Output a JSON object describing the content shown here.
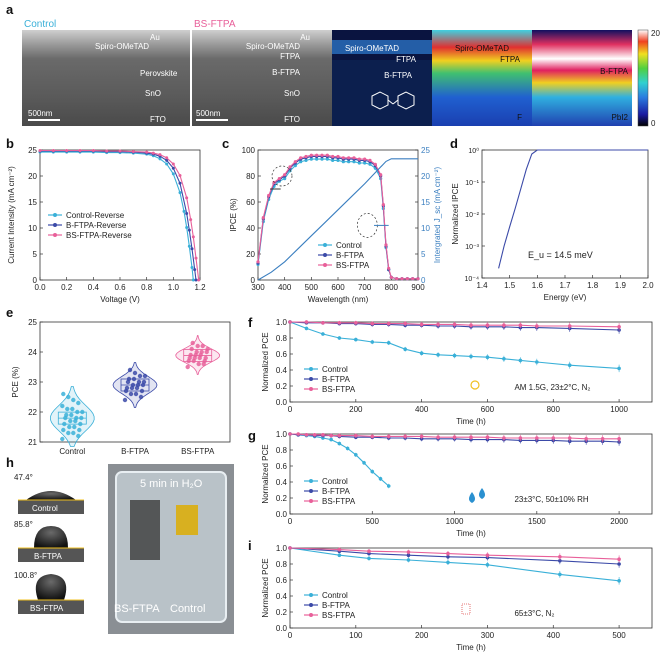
{
  "panel_labels": {
    "a": "a",
    "b": "b",
    "c": "c",
    "d": "d",
    "e": "e",
    "f": "f",
    "g": "g",
    "h": "h",
    "i": "i"
  },
  "panel_a": {
    "control_label": "Control",
    "bsftpa_label": "BS-FTPA",
    "control_layers": [
      "Au",
      "Spiro-OMeTAD",
      "Perovskite",
      "SnO",
      "FTO"
    ],
    "bsftpa_layers": [
      "Au",
      "Spiro-OMeTAD",
      "FTPA",
      "B-FTPA",
      "SnO",
      "FTO"
    ],
    "scale_bar": "500nm",
    "map1_labels": [
      "Spiro-OMeTAD",
      "FTPA",
      "B-FTPA"
    ],
    "map2_labels": [
      "Spiro-OMeTAD",
      "FTPA",
      "F"
    ],
    "map3_labels": [
      "B-FTPA",
      "PbI2"
    ],
    "colorbar_max": "20",
    "colorbar_min": "0",
    "colors": {
      "control": "#3ab0d8",
      "bsftpa": "#e8609a"
    }
  },
  "panel_h": {
    "angles": [
      "47.4°",
      "85.8°",
      "100.8°"
    ],
    "labels": [
      "Control",
      "B-FTPA",
      "BS-FTPA"
    ],
    "photo_text": "5 min in H₂O",
    "photo_labels": [
      "BS-FTPA",
      "Control"
    ]
  },
  "chart_data": [
    {
      "id": "b",
      "type": "line",
      "xlabel": "Voltage (V)",
      "ylabel": "Current Intensity (mA cm⁻²)",
      "xlim": [
        0,
        1.2
      ],
      "ylim": [
        0,
        25
      ],
      "xticks": [
        0.0,
        0.2,
        0.4,
        0.6,
        0.8,
        1.0,
        1.2
      ],
      "yticks": [
        0,
        5,
        10,
        15,
        20,
        25
      ],
      "legend": "bottom-left",
      "series": [
        {
          "name": "Control-Reverse",
          "color": "#3ab0d8",
          "x": [
            0,
            0.1,
            0.2,
            0.3,
            0.4,
            0.5,
            0.6,
            0.7,
            0.8,
            0.85,
            0.9,
            0.95,
            1.0,
            1.05,
            1.08,
            1.1,
            1.12,
            1.14,
            1.15
          ],
          "y": [
            24.6,
            24.6,
            24.6,
            24.6,
            24.6,
            24.5,
            24.5,
            24.4,
            24.2,
            23.9,
            23.3,
            22.3,
            20.4,
            16.8,
            13.2,
            10.1,
            6.5,
            2.4,
            0
          ]
        },
        {
          "name": "B-FTPA-Reverse",
          "color": "#3b4aa8",
          "x": [
            0,
            0.1,
            0.2,
            0.3,
            0.4,
            0.5,
            0.6,
            0.7,
            0.8,
            0.85,
            0.9,
            0.95,
            1.0,
            1.05,
            1.1,
            1.12,
            1.14,
            1.16,
            1.17
          ],
          "y": [
            24.8,
            24.8,
            24.8,
            24.8,
            24.8,
            24.7,
            24.7,
            24.6,
            24.4,
            24.2,
            23.8,
            23.0,
            21.5,
            18.6,
            12.8,
            9.6,
            6.0,
            2.0,
            0
          ]
        },
        {
          "name": "BS-FTPA-Reverse",
          "color": "#e8609a",
          "x": [
            0,
            0.1,
            0.2,
            0.3,
            0.4,
            0.5,
            0.6,
            0.7,
            0.8,
            0.85,
            0.9,
            0.95,
            1.0,
            1.05,
            1.1,
            1.13,
            1.15,
            1.17,
            1.19
          ],
          "y": [
            24.9,
            24.9,
            24.9,
            24.9,
            24.9,
            24.8,
            24.8,
            24.7,
            24.6,
            24.4,
            24.1,
            23.5,
            22.3,
            20.1,
            15.8,
            11.6,
            8.3,
            4.2,
            0
          ]
        }
      ]
    },
    {
      "id": "c",
      "type": "line",
      "xlabel": "Wavelength (nm)",
      "ylabel": "IPCE (%)",
      "y2label": "Intergrated J_sc (mA cm⁻²)",
      "xlim": [
        300,
        900
      ],
      "ylim": [
        0,
        100
      ],
      "y2lim": [
        0,
        25
      ],
      "xticks": [
        300,
        400,
        500,
        600,
        700,
        800,
        900
      ],
      "yticks": [
        0,
        20,
        40,
        60,
        80,
        100
      ],
      "y2ticks": [
        0,
        5,
        10,
        15,
        20,
        25
      ],
      "legend": "bottom-right",
      "series": [
        {
          "name": "Control",
          "color": "#3ab0d8",
          "x": [
            300,
            320,
            340,
            360,
            380,
            400,
            420,
            440,
            460,
            480,
            500,
            520,
            540,
            560,
            580,
            600,
            620,
            640,
            660,
            680,
            700,
            720,
            740,
            760,
            770,
            780,
            790,
            800,
            820,
            840,
            860,
            880,
            900
          ],
          "y": [
            12,
            45,
            62,
            72,
            76,
            78,
            84,
            88,
            91,
            92,
            93,
            93,
            93,
            93,
            92,
            92,
            91,
            91,
            91,
            90,
            90,
            89,
            86,
            78,
            55,
            25,
            8,
            2,
            1,
            1,
            1,
            1,
            1
          ]
        },
        {
          "name": "B-FTPA",
          "color": "#3b4aa8",
          "x": [
            300,
            320,
            340,
            360,
            380,
            400,
            420,
            440,
            460,
            480,
            500,
            520,
            540,
            560,
            580,
            600,
            620,
            640,
            660,
            680,
            700,
            720,
            740,
            760,
            770,
            780,
            790,
            800,
            820,
            840,
            860,
            880,
            900
          ],
          "y": [
            13,
            47,
            64,
            74,
            77,
            80,
            86,
            90,
            93,
            94,
            95,
            95,
            95,
            95,
            94,
            94,
            93,
            93,
            93,
            92,
            92,
            91,
            88,
            80,
            57,
            26,
            8,
            2,
            1,
            1,
            1,
            1,
            1
          ]
        },
        {
          "name": "BS-FTPA",
          "color": "#e8609a",
          "x": [
            300,
            320,
            340,
            360,
            380,
            400,
            420,
            440,
            460,
            480,
            500,
            520,
            540,
            560,
            580,
            600,
            620,
            640,
            660,
            680,
            700,
            720,
            740,
            760,
            770,
            780,
            790,
            800,
            820,
            840,
            860,
            880,
            900
          ],
          "y": [
            14,
            48,
            65,
            75,
            78,
            81,
            87,
            91,
            94,
            95,
            96,
            96,
            96,
            96,
            95,
            95,
            94,
            94,
            94,
            93,
            93,
            92,
            89,
            81,
            58,
            27,
            9,
            2,
            1,
            1,
            1,
            1,
            1
          ]
        },
        {
          "name": "",
          "axis": "y2",
          "color": "#3b7fc0",
          "x": [
            300,
            350,
            400,
            450,
            500,
            550,
            600,
            650,
            700,
            750,
            780,
            800,
            900
          ],
          "y": [
            0,
            1.5,
            3.5,
            6,
            8.5,
            11,
            13.5,
            16,
            18.5,
            21.2,
            22.8,
            23.3,
            23.3
          ]
        }
      ]
    },
    {
      "id": "d",
      "type": "line",
      "xlabel": "Energy (eV)",
      "ylabel": "Normalized IPCE",
      "scale": "log",
      "xlim": [
        1.4,
        2.0
      ],
      "ylim": [
        0.0001,
        1
      ],
      "xticks": [
        1.4,
        1.5,
        1.6,
        1.7,
        1.8,
        1.9,
        2.0
      ],
      "ytick_labels": [
        "10⁰",
        "10⁻¹",
        "10⁻²",
        "10⁻³",
        "10⁻⁴"
      ],
      "annotation": "E_u = 14.5 meV",
      "series": [
        {
          "name": "",
          "color": "#3b4aa8",
          "x": [
            1.46,
            1.48,
            1.5,
            1.52,
            1.54,
            1.56,
            1.58,
            1.6,
            1.7,
            1.8,
            1.9,
            2.0
          ],
          "y": [
            0.0002,
            0.001,
            0.004,
            0.015,
            0.06,
            0.25,
            0.75,
            1,
            1,
            1,
            1,
            1
          ]
        }
      ]
    },
    {
      "id": "e",
      "type": "scatter",
      "ylabel": "PCE (%)",
      "categories": [
        "Control",
        "B-FTPA",
        "BS-FTPA"
      ],
      "ylim": [
        21,
        25
      ],
      "yticks": [
        21,
        22,
        23,
        24,
        25
      ],
      "series": [
        {
          "name": "Control",
          "color": "#3ab0d8",
          "values": [
            21.1,
            21.2,
            21.3,
            21.3,
            21.4,
            21.4,
            21.5,
            21.5,
            21.6,
            21.6,
            21.7,
            21.7,
            21.8,
            21.8,
            21.8,
            21.9,
            21.9,
            22.0,
            22.0,
            22.1,
            22.1,
            22.2,
            22.3,
            22.4,
            22.5,
            22.6
          ]
        },
        {
          "name": "B-FTPA",
          "color": "#3b4aa8",
          "values": [
            22.4,
            22.5,
            22.6,
            22.6,
            22.7,
            22.7,
            22.8,
            22.8,
            22.8,
            22.9,
            22.9,
            22.9,
            23.0,
            23.0,
            23.0,
            23.1,
            23.1,
            23.2,
            23.2,
            23.3,
            23.4
          ]
        },
        {
          "name": "BS-FTPA",
          "color": "#e8609a",
          "values": [
            23.5,
            23.6,
            23.6,
            23.7,
            23.7,
            23.7,
            23.8,
            23.8,
            23.8,
            23.8,
            23.9,
            23.9,
            23.9,
            24.0,
            24.0,
            24.0,
            24.1,
            24.1,
            24.2,
            24.2,
            24.3
          ]
        }
      ]
    },
    {
      "id": "f",
      "type": "line",
      "xlabel": "Time (h)",
      "ylabel": "Normalized PCE",
      "xlim": [
        0,
        1100
      ],
      "ylim": [
        0,
        1.0
      ],
      "xticks": [
        0,
        200,
        400,
        600,
        800,
        1000
      ],
      "yticks": [
        0.0,
        0.2,
        0.4,
        0.6,
        0.8,
        1.0
      ],
      "legend": "bottom-left",
      "annotation": "AM 1.5G, 23±2°C, N₂",
      "series": [
        {
          "name": "Control",
          "color": "#3ab0d8",
          "x": [
            0,
            50,
            100,
            150,
            200,
            250,
            300,
            350,
            400,
            450,
            500,
            550,
            600,
            650,
            700,
            750,
            850,
            1000
          ],
          "y": [
            1.0,
            0.92,
            0.85,
            0.8,
            0.78,
            0.75,
            0.74,
            0.66,
            0.61,
            0.59,
            0.58,
            0.57,
            0.56,
            0.54,
            0.52,
            0.5,
            0.46,
            0.42
          ]
        },
        {
          "name": "B-FTPA",
          "color": "#3b4aa8",
          "x": [
            0,
            50,
            100,
            150,
            200,
            250,
            300,
            350,
            400,
            450,
            500,
            550,
            600,
            650,
            700,
            750,
            850,
            1000
          ],
          "y": [
            1.0,
            0.99,
            0.99,
            0.98,
            0.98,
            0.97,
            0.97,
            0.96,
            0.96,
            0.95,
            0.95,
            0.94,
            0.94,
            0.94,
            0.93,
            0.93,
            0.92,
            0.9
          ]
        },
        {
          "name": "BS-FTPA",
          "color": "#e8609a",
          "x": [
            0,
            50,
            100,
            150,
            200,
            250,
            300,
            350,
            400,
            450,
            500,
            550,
            600,
            650,
            700,
            750,
            850,
            1000
          ],
          "y": [
            1.0,
            1.0,
            0.99,
            0.99,
            0.99,
            0.98,
            0.98,
            0.98,
            0.97,
            0.97,
            0.97,
            0.96,
            0.96,
            0.96,
            0.96,
            0.95,
            0.95,
            0.94
          ]
        }
      ]
    },
    {
      "id": "g",
      "type": "line",
      "xlabel": "Time (h)",
      "ylabel": "Normalized PCE",
      "xlim": [
        0,
        2200
      ],
      "ylim": [
        0,
        1.0
      ],
      "xticks": [
        0,
        500,
        1000,
        1500,
        2000
      ],
      "yticks": [
        0.0,
        0.2,
        0.4,
        0.6,
        0.8,
        1.0
      ],
      "legend": "bottom-left",
      "annotation": "23±3°C, 50±10% RH",
      "series": [
        {
          "name": "Control",
          "color": "#3ab0d8",
          "x": [
            0,
            50,
            100,
            150,
            200,
            250,
            300,
            350,
            400,
            450,
            500,
            550,
            600
          ],
          "y": [
            1.0,
            0.99,
            0.98,
            0.97,
            0.95,
            0.93,
            0.88,
            0.82,
            0.74,
            0.64,
            0.53,
            0.44,
            0.35
          ]
        },
        {
          "name": "B-FTPA",
          "color": "#3b4aa8",
          "x": [
            0,
            50,
            100,
            150,
            200,
            250,
            300,
            400,
            500,
            600,
            700,
            800,
            900,
            1000,
            1100,
            1200,
            1300,
            1400,
            1500,
            1600,
            1700,
            1800,
            1900,
            2000
          ],
          "y": [
            1.0,
            0.99,
            0.99,
            0.98,
            0.98,
            0.98,
            0.97,
            0.96,
            0.96,
            0.95,
            0.95,
            0.94,
            0.94,
            0.94,
            0.93,
            0.93,
            0.93,
            0.92,
            0.92,
            0.92,
            0.91,
            0.91,
            0.91,
            0.9
          ]
        },
        {
          "name": "BS-FTPA",
          "color": "#e8609a",
          "x": [
            0,
            50,
            100,
            150,
            200,
            250,
            300,
            400,
            500,
            600,
            700,
            800,
            900,
            1000,
            1100,
            1200,
            1300,
            1400,
            1500,
            1600,
            1700,
            1800,
            1900,
            2000
          ],
          "y": [
            1.0,
            1.0,
            0.99,
            0.99,
            0.99,
            0.98,
            0.98,
            0.98,
            0.97,
            0.97,
            0.97,
            0.97,
            0.96,
            0.96,
            0.96,
            0.96,
            0.95,
            0.95,
            0.95,
            0.95,
            0.95,
            0.94,
            0.94,
            0.94
          ]
        }
      ]
    },
    {
      "id": "i",
      "type": "line",
      "xlabel": "Time (h)",
      "ylabel": "Normalized PCE",
      "xlim": [
        0,
        550
      ],
      "ylim": [
        0,
        1.0
      ],
      "xticks": [
        0,
        100,
        200,
        300,
        400,
        500
      ],
      "yticks": [
        0.0,
        0.2,
        0.4,
        0.6,
        0.8,
        1.0
      ],
      "legend": "bottom-left",
      "annotation": "65±3°C, N₂",
      "series": [
        {
          "name": "Control",
          "color": "#3ab0d8",
          "x": [
            0,
            75,
            120,
            180,
            240,
            300,
            410,
            500
          ],
          "y": [
            1.0,
            0.91,
            0.87,
            0.85,
            0.82,
            0.79,
            0.67,
            0.59
          ]
        },
        {
          "name": "B-FTPA",
          "color": "#3b4aa8",
          "x": [
            0,
            75,
            120,
            180,
            240,
            300,
            410,
            500
          ],
          "y": [
            1.0,
            0.96,
            0.93,
            0.91,
            0.89,
            0.88,
            0.84,
            0.8
          ]
        },
        {
          "name": "BS-FTPA",
          "color": "#e8609a",
          "x": [
            0,
            75,
            120,
            180,
            240,
            300,
            410,
            500
          ],
          "y": [
            1.0,
            0.98,
            0.96,
            0.95,
            0.93,
            0.91,
            0.89,
            0.86
          ]
        }
      ]
    }
  ]
}
